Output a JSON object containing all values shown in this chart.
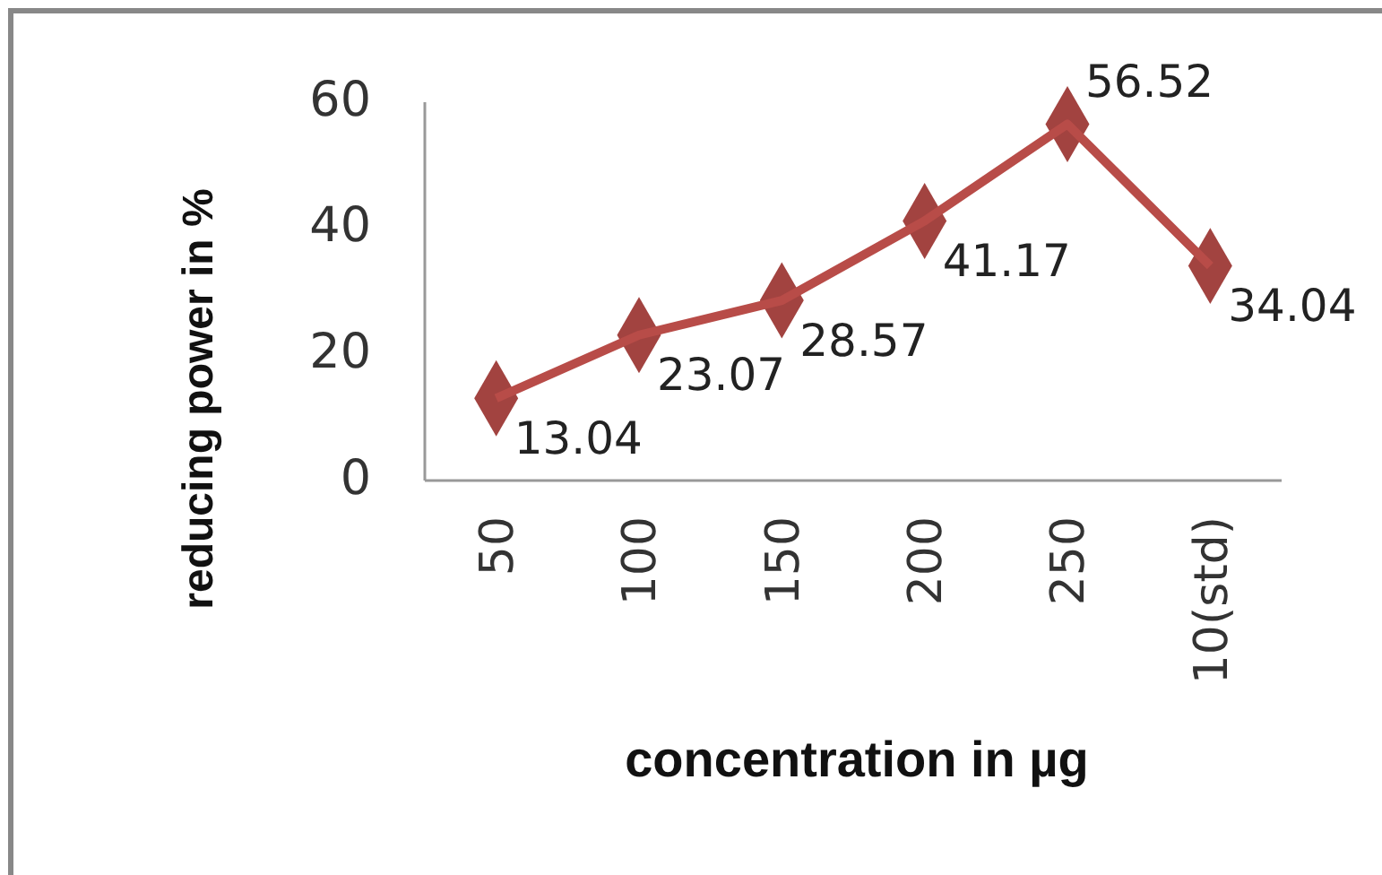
{
  "chart_data": {
    "type": "line",
    "xlabel": "concentration in µg",
    "ylabel": "reducing power in %",
    "categories": [
      "50",
      "100",
      "150",
      "200",
      "250",
      "10(std)"
    ],
    "series": [
      {
        "color": "#b84c48",
        "values": [
          13.04,
          23.07,
          28.57,
          41.17,
          56.52,
          34.04
        ]
      }
    ],
    "ylim": [
      0,
      60
    ],
    "yticks": [
      0,
      20,
      40,
      60
    ],
    "marker": "diamond",
    "data_labels": true,
    "grid": false
  }
}
